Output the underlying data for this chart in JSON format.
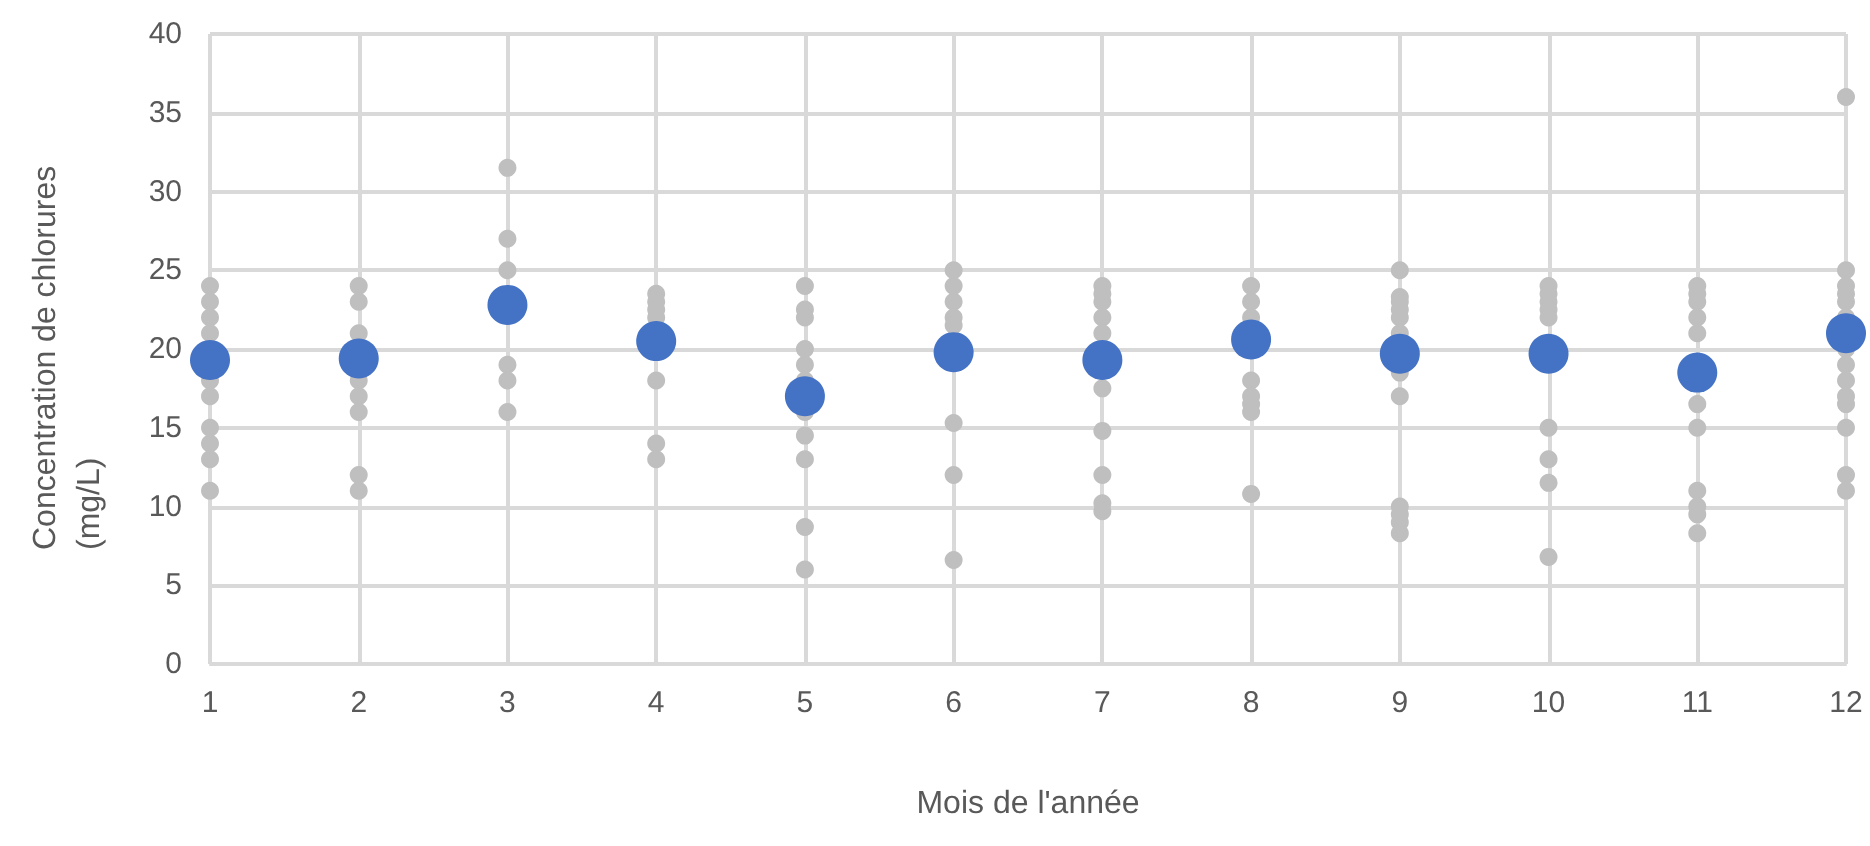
{
  "chart_data": {
    "type": "scatter",
    "xlabel": "Mois de l'année",
    "ylabel": "Concentration de chlorures (mg/L)",
    "xlim": [
      1,
      12
    ],
    "xticks": [
      1,
      2,
      3,
      4,
      5,
      6,
      7,
      8,
      9,
      10,
      11,
      12
    ],
    "ylim": [
      0,
      40
    ],
    "yticks": [
      0,
      5,
      10,
      15,
      20,
      25,
      30,
      35,
      40
    ],
    "grid": true,
    "marker": "circle",
    "series": [
      {
        "color": "#bfbfbf",
        "x": [
          1,
          1,
          1,
          1,
          1,
          1,
          1,
          1,
          1,
          1,
          2,
          2,
          2,
          2,
          2,
          2,
          2,
          2,
          3,
          3,
          3,
          3,
          3,
          3,
          4,
          4,
          4,
          4,
          4,
          4,
          4,
          5,
          5,
          5,
          5,
          5,
          5,
          5,
          5,
          5,
          5,
          5,
          6,
          6,
          6,
          6,
          6,
          6,
          6,
          6,
          7,
          7,
          7,
          7,
          7,
          7,
          7,
          7,
          7,
          7,
          8,
          8,
          8,
          8,
          8,
          8,
          8,
          8,
          9,
          9,
          9,
          9,
          9,
          9,
          9,
          9,
          9,
          9,
          9,
          9,
          10,
          10,
          10,
          10,
          10,
          10,
          10,
          10,
          10,
          11,
          11,
          11,
          11,
          11,
          11,
          11,
          11,
          11,
          11,
          11,
          12,
          12,
          12,
          12,
          12,
          12,
          12,
          12,
          12,
          12,
          12,
          12,
          12,
          12
        ],
        "values": [
          24,
          23,
          22,
          21,
          18,
          17,
          15,
          14,
          13,
          11,
          24,
          23,
          21,
          18,
          17,
          16,
          12,
          11,
          31.5,
          27,
          25,
          19,
          18,
          16,
          23.5,
          23,
          22.5,
          22,
          18,
          14,
          13,
          24,
          22.5,
          22,
          20,
          19,
          18,
          16,
          14.5,
          13,
          8.7,
          6,
          25,
          24,
          23,
          22,
          21.5,
          15.3,
          12,
          6.6,
          24,
          23.5,
          23,
          22,
          21,
          17.5,
          14.8,
          12,
          10.2,
          9.7,
          24,
          23,
          22,
          18,
          17,
          16.5,
          16,
          10.8,
          25,
          23.3,
          23,
          22.5,
          22,
          21,
          18.5,
          17,
          10,
          9.5,
          9,
          8.3,
          24,
          23.5,
          23,
          22.5,
          22,
          15,
          13,
          11.5,
          6.8,
          24,
          23.5,
          23,
          22,
          21,
          16.5,
          15,
          11,
          10,
          9.5,
          8.3,
          36,
          25,
          24,
          23.5,
          23,
          22,
          20,
          19,
          18,
          17,
          16.5,
          15,
          12,
          11
        ]
      },
      {
        "color": "#4472c4",
        "x": [
          1,
          2,
          3,
          4,
          5,
          6,
          7,
          8,
          9,
          10,
          11,
          12
        ],
        "values": [
          19.3,
          19.4,
          22.8,
          20.5,
          17,
          19.8,
          19.3,
          20.6,
          19.7,
          19.7,
          18.5,
          21
        ]
      }
    ]
  }
}
